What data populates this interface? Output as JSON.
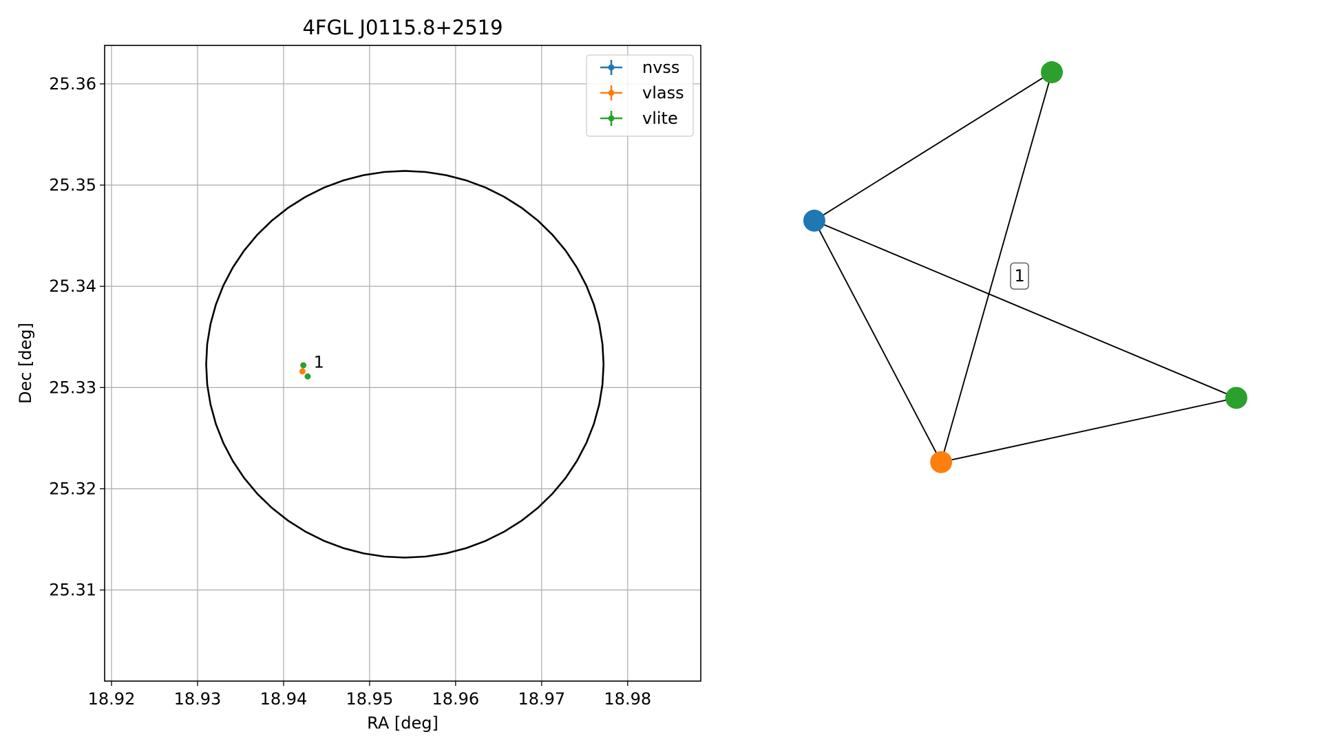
{
  "chart_data": [
    {
      "type": "scatter",
      "title": "4FGL J0115.8+2519",
      "xlabel": "RA [deg]",
      "ylabel": "Dec [deg]",
      "xlim": [
        18.9192,
        18.9885
      ],
      "ylim": [
        25.301,
        25.3638
      ],
      "xticks": [
        18.92,
        18.93,
        18.94,
        18.95,
        18.96,
        18.97,
        18.98
      ],
      "yticks": [
        25.31,
        25.32,
        25.33,
        25.34,
        25.35,
        25.36
      ],
      "xtick_labels": [
        "18.92",
        "18.93",
        "18.94",
        "18.95",
        "18.96",
        "18.97",
        "18.98"
      ],
      "ytick_labels": [
        "25.31",
        "25.32",
        "25.33",
        "25.34",
        "25.35",
        "25.36"
      ],
      "grid": true,
      "legend_position": "top-right",
      "series": [
        {
          "name": "nvss",
          "color": "#1f77b4",
          "x": [],
          "y": []
        },
        {
          "name": "vlass",
          "color": "#ff7f0e",
          "x": [
            18.9422
          ],
          "y": [
            25.3316
          ]
        },
        {
          "name": "vlite",
          "color": "#2ca02c",
          "x": [
            18.9423,
            18.9428
          ],
          "y": [
            25.3322,
            25.3311
          ]
        }
      ],
      "ellipse": {
        "center": [
          18.9541,
          25.3323
        ],
        "radius_x": 0.0231,
        "radius_y": 0.0191,
        "color": "#000000"
      },
      "annotations": [
        {
          "text": "1",
          "x": 18.9435,
          "y": 25.3325
        }
      ]
    },
    {
      "type": "network",
      "nodes": [
        {
          "id": "nvss",
          "color": "#1f77b4",
          "pos": [
            -0.83,
            0.33
          ]
        },
        {
          "id": "vlite_a",
          "color": "#2ca02c",
          "pos": [
            0.2,
            1.0
          ]
        },
        {
          "id": "vlite_b",
          "color": "#2ca02c",
          "pos": [
            1.0,
            -0.47
          ]
        },
        {
          "id": "vlass",
          "color": "#ff7f0e",
          "pos": [
            -0.28,
            -0.76
          ]
        }
      ],
      "edges": [
        [
          "nvss",
          "vlite_a"
        ],
        [
          "nvss",
          "vlite_b"
        ],
        [
          "nvss",
          "vlass"
        ],
        [
          "vlass",
          "vlite_a"
        ],
        [
          "vlass",
          "vlite_b"
        ]
      ],
      "labels": [
        {
          "text": "1",
          "pos": [
            0.06,
            0.08
          ]
        }
      ]
    }
  ]
}
